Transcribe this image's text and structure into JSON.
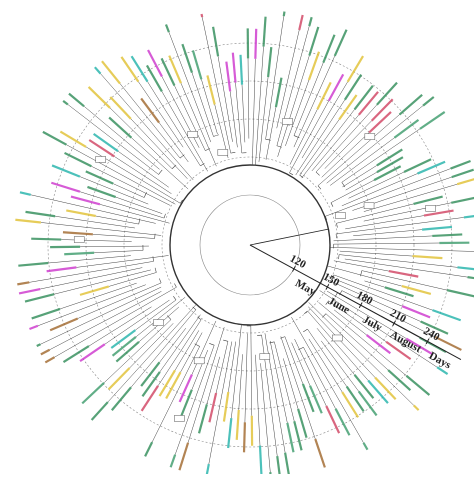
{
  "axis": {
    "ticks": [
      "120",
      "150",
      "180",
      "210",
      "240"
    ],
    "months": [
      "May",
      "June",
      "July",
      "August"
    ],
    "unit": "Days"
  }
}
